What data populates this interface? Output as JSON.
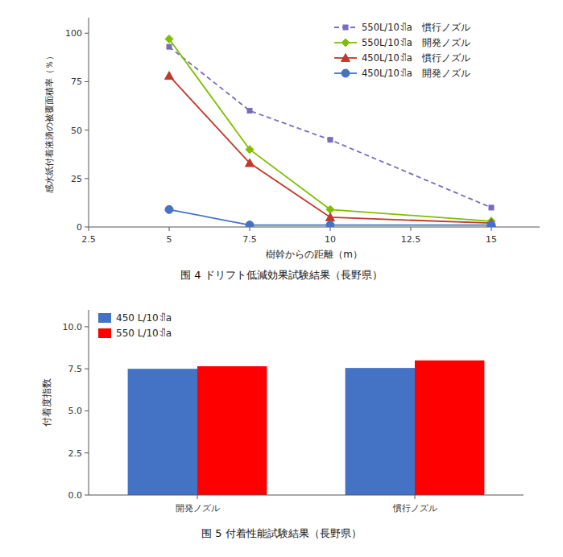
{
  "chart_data": [
    {
      "type": "line",
      "title": "围 4   ドリフト低減効果試験結果（長野県）",
      "x_label": "樹幹からの距離（m）",
      "y_label": "感水紙付着液滴の被覆面積率（％）",
      "x": [
        5,
        7.5,
        10,
        15
      ],
      "series": [
        {
          "name": "550L/10ꀊa　慣行ノズル",
          "values": [
            93,
            60,
            45,
            10
          ],
          "color": "#7b6bbd",
          "marker": "square",
          "line_style": "dashed"
        },
        {
          "name": "550L/10ꀊa　開発ノズル",
          "values": [
            97,
            40,
            9,
            3
          ],
          "color": "#7fbf00",
          "marker": "diamond",
          "line_style": "solid"
        },
        {
          "name": "450L/10ꀊa　慣行ノズル",
          "values": [
            78,
            33,
            5,
            2
          ],
          "color": "#c0392b",
          "marker": "triangle",
          "line_style": "solid"
        },
        {
          "name": "450L/10ꀊa　開発ノズル",
          "values": [
            9,
            1,
            1,
            1
          ],
          "color": "#4472c4",
          "marker": "circle",
          "line_style": "solid"
        }
      ],
      "xlim": [
        2.5,
        16.5
      ],
      "ylim": [
        0,
        108
      ],
      "xticks": [
        2.5,
        5,
        7.5,
        10,
        12.5,
        15
      ],
      "yticks": [
        0,
        25,
        50,
        75,
        100
      ],
      "grid": false,
      "legend": "upper-right"
    },
    {
      "type": "bar",
      "title": "围 5   付着性能試験結果（長野県）",
      "y_label": "付着度指数",
      "categories": [
        "開発ノズル",
        "慣行ノズル"
      ],
      "series": [
        {
          "name": "450  L/10ꀊa",
          "values": [
            7.5,
            7.55
          ],
          "color": "#4472c4"
        },
        {
          "name": "550  L/10ꀊa",
          "values": [
            7.65,
            8.0
          ],
          "color": "#ff0000"
        }
      ],
      "ylim": [
        0,
        11.0
      ],
      "yticks": [
        {
          "value": 0.0,
          "label": "0.0"
        },
        {
          "value": 2.5,
          "label": "2.5"
        },
        {
          "value": 5.0,
          "label": "5.0"
        },
        {
          "value": 7.5,
          "label": "7.5"
        },
        {
          "value": 10.0,
          "label": "10.0"
        }
      ],
      "grid": false,
      "legend": "upper-left"
    }
  ]
}
